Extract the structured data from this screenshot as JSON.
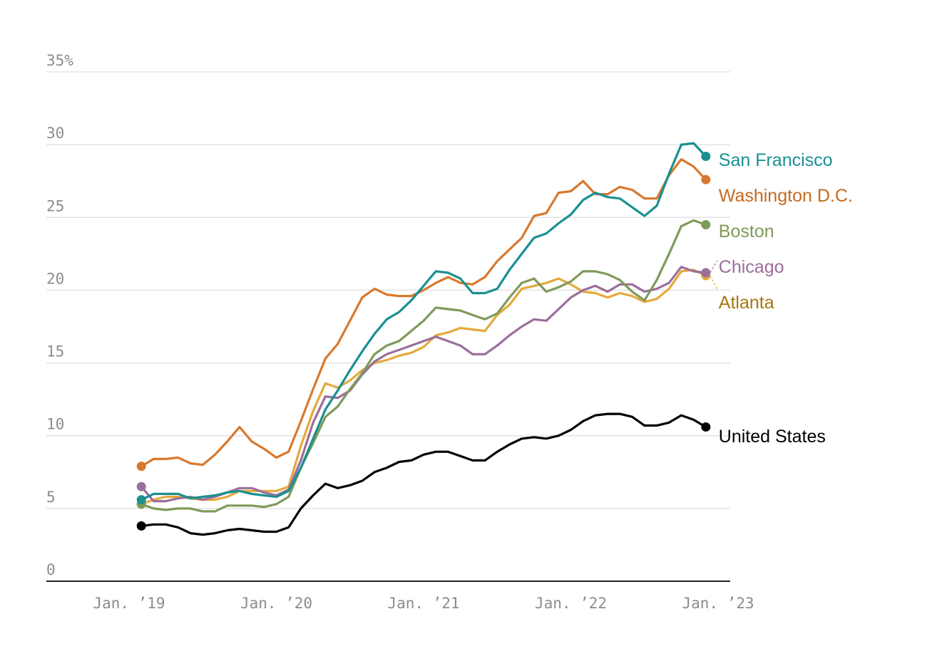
{
  "chart_data": {
    "type": "line",
    "title": "",
    "xlabel": "",
    "ylabel": "",
    "ylim": [
      0,
      35
    ],
    "y_ticks": [
      {
        "value": 0,
        "label": "0"
      },
      {
        "value": 5,
        "label": "5"
      },
      {
        "value": 10,
        "label": "10"
      },
      {
        "value": 15,
        "label": "15"
      },
      {
        "value": 20,
        "label": "20"
      },
      {
        "value": 25,
        "label": "25"
      },
      {
        "value": 30,
        "label": "30"
      },
      {
        "value": 35,
        "label": "35%"
      }
    ],
    "x_ticks": [
      {
        "value": "2019-01",
        "label": "Jan. ’19"
      },
      {
        "value": "2020-01",
        "label": "Jan. ’20"
      },
      {
        "value": "2021-01",
        "label": "Jan. ’21"
      },
      {
        "value": "2022-01",
        "label": "Jan. ’22"
      },
      {
        "value": "2023-01",
        "label": "Jan. ’23"
      }
    ],
    "x_start": "2019-02",
    "x_step": "month",
    "grid": true,
    "legend": "direct labels at line ends (right)",
    "series": [
      {
        "name": "San Francisco",
        "color": "#1a9091",
        "values": [
          5.6,
          6.0,
          6.0,
          6.0,
          5.7,
          5.8,
          5.9,
          6.1,
          6.2,
          6.0,
          5.9,
          5.8,
          6.2,
          7.8,
          9.8,
          11.8,
          13.1,
          14.5,
          15.8,
          17.0,
          18.0,
          18.5,
          19.3,
          20.3,
          21.3,
          21.2,
          20.8,
          19.8,
          19.8,
          20.1,
          21.4,
          22.5,
          23.6,
          23.9,
          24.6,
          25.2,
          26.2,
          26.7,
          26.4,
          26.3,
          25.7,
          25.1,
          25.8,
          28.0,
          30.0,
          30.1,
          29.2
        ]
      },
      {
        "name": "Washington D.C.",
        "color": "#d9782c",
        "values": [
          7.9,
          8.4,
          8.4,
          8.5,
          8.1,
          8.0,
          8.7,
          9.6,
          10.6,
          9.6,
          9.1,
          8.5,
          8.9,
          11.0,
          13.2,
          15.3,
          16.3,
          17.9,
          19.5,
          20.1,
          19.7,
          19.6,
          19.6,
          20.0,
          20.5,
          20.9,
          20.5,
          20.4,
          20.9,
          22.0,
          22.8,
          23.6,
          25.1,
          25.3,
          26.7,
          26.8,
          27.5,
          26.6,
          26.6,
          27.1,
          26.9,
          26.3,
          26.3,
          27.9,
          29.0,
          28.5,
          27.6
        ]
      },
      {
        "name": "Boston",
        "color": "#7f9a5a",
        "values": [
          5.3,
          5.0,
          4.9,
          5.0,
          5.0,
          4.8,
          4.8,
          5.2,
          5.2,
          5.2,
          5.1,
          5.3,
          5.8,
          7.8,
          9.5,
          11.3,
          12.0,
          13.2,
          14.3,
          15.6,
          16.2,
          16.5,
          17.2,
          17.9,
          18.8,
          18.7,
          18.6,
          18.3,
          18.0,
          18.4,
          19.5,
          20.5,
          20.8,
          19.9,
          20.2,
          20.6,
          21.3,
          21.3,
          21.1,
          20.7,
          19.9,
          19.3,
          20.7,
          22.5,
          24.4,
          24.8,
          24.5
        ]
      },
      {
        "name": "Chicago",
        "color": "#9b6e9b",
        "values": [
          6.5,
          5.5,
          5.5,
          5.7,
          5.8,
          5.6,
          5.8,
          6.1,
          6.4,
          6.4,
          6.1,
          5.9,
          6.3,
          8.3,
          10.9,
          12.7,
          12.6,
          13.1,
          14.2,
          15.1,
          15.6,
          15.9,
          16.2,
          16.5,
          16.8,
          16.5,
          16.2,
          15.6,
          15.6,
          16.2,
          16.9,
          17.5,
          18.0,
          17.9,
          18.7,
          19.5,
          20.0,
          20.3,
          19.9,
          20.4,
          20.4,
          19.9,
          20.1,
          20.5,
          21.6,
          21.3,
          21.2
        ]
      },
      {
        "name": "Atlanta",
        "color": "#e5a93b",
        "values": [
          5.3,
          5.6,
          5.8,
          5.8,
          5.7,
          5.6,
          5.6,
          5.8,
          6.2,
          6.2,
          6.2,
          6.2,
          6.5,
          9.3,
          11.7,
          13.6,
          13.3,
          13.8,
          14.5,
          15.0,
          15.2,
          15.5,
          15.7,
          16.1,
          16.9,
          17.1,
          17.4,
          17.3,
          17.2,
          18.3,
          19.0,
          20.1,
          20.3,
          20.5,
          20.8,
          20.4,
          19.9,
          19.8,
          19.5,
          19.8,
          19.6,
          19.2,
          19.4,
          20.1,
          21.3,
          21.4,
          21.0
        ]
      },
      {
        "name": "United States",
        "color": "#000000",
        "values": [
          3.8,
          3.9,
          3.9,
          3.7,
          3.3,
          3.2,
          3.3,
          3.5,
          3.6,
          3.5,
          3.4,
          3.4,
          3.7,
          5.0,
          5.9,
          6.7,
          6.4,
          6.6,
          6.9,
          7.5,
          7.8,
          8.2,
          8.3,
          8.7,
          8.9,
          8.9,
          8.6,
          8.3,
          8.3,
          8.9,
          9.4,
          9.8,
          9.9,
          9.8,
          10.0,
          10.4,
          11.0,
          11.4,
          11.5,
          11.5,
          11.3,
          10.7,
          10.7,
          10.9,
          11.4,
          11.1,
          10.6
        ]
      }
    ]
  }
}
